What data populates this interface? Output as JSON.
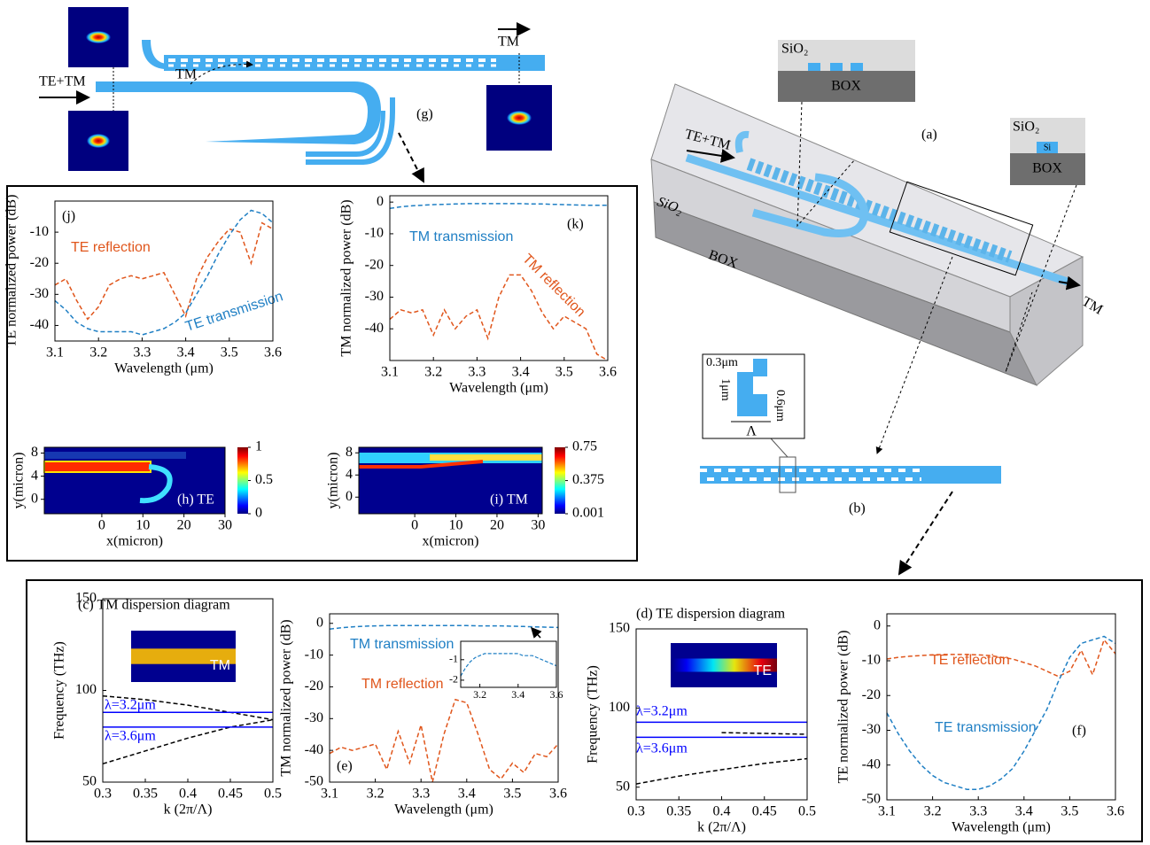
{
  "diagram": {
    "g": {
      "input": "TE+TM",
      "coupled": "TM",
      "output": "TM",
      "label": "(g)"
    },
    "a": {
      "input": "TE+TM",
      "output": "TM",
      "label": "(a)",
      "cladding": "SiO₂",
      "substrate": "BOX",
      "inset1": {
        "cladding": "SiO₂",
        "substrate": "BOX"
      },
      "inset2": {
        "cladding": "SiO₂",
        "core": "Si",
        "substrate": "BOX"
      }
    },
    "b": {
      "width": "0.3μm",
      "height": "1μm",
      "gap": "0.6μm",
      "period": "Λ",
      "label": "(b)"
    }
  },
  "chart_data": [
    {
      "type": "line",
      "panel_label": "(j)",
      "xlabel": "Wavelength (μm)",
      "ylabel": "TE normalized power (dB)",
      "xlim": [
        3.1,
        3.6
      ],
      "ylim": [
        -45,
        0
      ],
      "xticks": [
        3.1,
        3.2,
        3.3,
        3.4,
        3.5,
        3.6
      ],
      "yticks": [
        -40,
        -30,
        -20,
        -10
      ],
      "x": [
        3.1,
        3.125,
        3.15,
        3.175,
        3.2,
        3.225,
        3.25,
        3.275,
        3.3,
        3.325,
        3.35,
        3.375,
        3.4,
        3.425,
        3.45,
        3.475,
        3.5,
        3.525,
        3.55,
        3.575,
        3.6
      ],
      "series": [
        {
          "name": "TE reflection",
          "color": "#e0561c",
          "linestyle": "dashed",
          "values": [
            -27,
            -25,
            -32,
            -38,
            -34,
            -27,
            -25,
            -24,
            -25,
            -24,
            -23,
            -30,
            -37,
            -25,
            -18,
            -13,
            -9,
            -10,
            -20,
            -7,
            -9
          ]
        },
        {
          "name": "TE transmission",
          "color": "#1f7fc4",
          "linestyle": "dashed",
          "values": [
            -32,
            -35,
            -39,
            -41,
            -42,
            -42,
            -42,
            -42,
            -43,
            -42,
            -41,
            -39,
            -36,
            -30,
            -24,
            -17,
            -11,
            -6,
            -3,
            -4,
            -7
          ]
        }
      ]
    },
    {
      "type": "line",
      "panel_label": "(k)",
      "xlabel": "Wavelength (μm)",
      "ylabel": "TM normalized power (dB)",
      "xlim": [
        3.1,
        3.6
      ],
      "ylim": [
        -50,
        2
      ],
      "xticks": [
        3.1,
        3.2,
        3.3,
        3.4,
        3.5,
        3.6
      ],
      "yticks": [
        -40,
        -30,
        -20,
        -10,
        0
      ],
      "x": [
        3.1,
        3.125,
        3.15,
        3.175,
        3.2,
        3.225,
        3.25,
        3.275,
        3.3,
        3.325,
        3.35,
        3.375,
        3.4,
        3.425,
        3.45,
        3.475,
        3.5,
        3.525,
        3.55,
        3.575,
        3.6
      ],
      "series": [
        {
          "name": "TM transmission",
          "color": "#1f7fc4",
          "linestyle": "dashed",
          "values": [
            -2,
            -1.5,
            -1.2,
            -1,
            -0.8,
            -0.7,
            -0.6,
            -0.5,
            -0.5,
            -0.5,
            -0.5,
            -0.5,
            -0.5,
            -0.6,
            -0.6,
            -0.7,
            -0.8,
            -0.9,
            -1,
            -1,
            -1
          ]
        },
        {
          "name": "TM reflection",
          "color": "#e0561c",
          "linestyle": "dashed",
          "values": [
            -37,
            -34,
            -35,
            -34,
            -42,
            -34,
            -40,
            -36,
            -34,
            -43,
            -30,
            -23,
            -23,
            -28,
            -35,
            -40,
            -36,
            -38,
            -40,
            -48,
            -50
          ]
        }
      ]
    },
    {
      "type": "heatmap",
      "panel_label": "(h) TE",
      "xlabel": "x(micron)",
      "ylabel": "y(micron)",
      "xlim": [
        -14,
        30
      ],
      "ylim": [
        -2.5,
        9
      ],
      "xticks": [
        0,
        10,
        20,
        30
      ],
      "yticks": [
        0,
        4,
        8
      ],
      "colorbar_lim": [
        0,
        1
      ],
      "colorbar_ticks": [
        1,
        0.5,
        0
      ]
    },
    {
      "type": "heatmap",
      "panel_label": "(i) TM",
      "xlabel": "x(micron)",
      "ylabel": "y(micron)",
      "xlim": [
        -13.6,
        31
      ],
      "ylim": [
        -3,
        9
      ],
      "xticks": [
        0,
        10,
        20,
        30
      ],
      "yticks": [
        0,
        4,
        8
      ],
      "colorbar_lim": [
        0.001,
        0.75
      ],
      "colorbar_ticks": [
        0.75,
        0.375,
        0.001
      ]
    },
    {
      "type": "dispersion",
      "title": "(c) TM dispersion diagram",
      "inset_label": "TM",
      "xlabel": "k (2π/Λ)",
      "ylabel": "Frequency (THz)",
      "xlim": [
        0.3,
        0.5
      ],
      "ylim": [
        50,
        150
      ],
      "xticks": [
        0.3,
        0.35,
        0.4,
        0.45,
        0.5
      ],
      "yticks": [
        50,
        100,
        150
      ],
      "series": [
        {
          "color": "#000000",
          "linestyle": "dashed",
          "x": [
            0.3,
            0.35,
            0.4,
            0.45,
            0.5
          ],
          "values": [
            97,
            95,
            92,
            88,
            84
          ]
        },
        {
          "color": "#000000",
          "linestyle": "dashed",
          "x": [
            0.3,
            0.35,
            0.4,
            0.45,
            0.5
          ],
          "values": [
            60,
            67,
            74,
            80,
            84
          ]
        },
        {
          "name": "λ=3.2μm",
          "color": "#0000ff",
          "linestyle": "solid",
          "x": [
            0.3,
            0.5
          ],
          "values": [
            88,
            88
          ]
        },
        {
          "name": "λ=3.6μm",
          "color": "#0000ff",
          "linestyle": "solid",
          "x": [
            0.3,
            0.5
          ],
          "values": [
            80,
            80
          ]
        }
      ]
    },
    {
      "type": "line",
      "panel_label": "(e)",
      "xlabel": "Wavelength (μm)",
      "ylabel": "TM normalized power (dB)",
      "xlim": [
        3.1,
        3.6
      ],
      "ylim": [
        -50,
        3
      ],
      "xticks": [
        3.1,
        3.2,
        3.3,
        3.4,
        3.5,
        3.6
      ],
      "yticks": [
        -50,
        -40,
        -30,
        -20,
        -10,
        0
      ],
      "x": [
        3.1,
        3.125,
        3.15,
        3.175,
        3.2,
        3.225,
        3.25,
        3.275,
        3.3,
        3.325,
        3.35,
        3.375,
        3.4,
        3.425,
        3.45,
        3.475,
        3.5,
        3.525,
        3.55,
        3.575,
        3.6
      ],
      "series": [
        {
          "name": "TM transmission",
          "color": "#1f7fc4",
          "linestyle": "dashed",
          "values": [
            -1.8,
            -1.4,
            -1.1,
            -0.9,
            -0.8,
            -0.7,
            -0.7,
            -0.7,
            -0.7,
            -0.7,
            -0.7,
            -0.7,
            -0.7,
            -0.8,
            -0.8,
            -0.8,
            -0.9,
            -1,
            -1.1,
            -1.2,
            -1.3
          ]
        },
        {
          "name": "TM reflection",
          "color": "#e0561c",
          "linestyle": "dashed",
          "values": [
            -41,
            -39,
            -40,
            -39,
            -38,
            -46,
            -34,
            -44,
            -32,
            -50,
            -35,
            -24,
            -25,
            -35,
            -46,
            -49,
            -44,
            -47,
            -41,
            -42,
            -38
          ]
        }
      ],
      "inset": {
        "xlim": [
          3.1,
          3.6
        ],
        "ylim": [
          -2.35,
          -0.1
        ],
        "xticks": [
          3.2,
          3.4,
          3.6
        ],
        "yticks": [
          -1,
          -2
        ]
      }
    },
    {
      "type": "dispersion",
      "title": "(d) TE dispersion diagram",
      "inset_label": "TE",
      "xlabel": "k (2π/Λ)",
      "ylabel": "Frequency (THz)",
      "xlim": [
        0.3,
        0.5
      ],
      "ylim": [
        42,
        150
      ],
      "xticks": [
        0.3,
        0.35,
        0.4,
        0.45,
        0.5
      ],
      "yticks": [
        50,
        100,
        150
      ],
      "series": [
        {
          "color": "#000000",
          "linestyle": "dashed",
          "x": [
            0.3,
            0.35,
            0.4,
            0.45,
            0.5
          ],
          "values": [
            52,
            57,
            61,
            65,
            68
          ]
        },
        {
          "color": "#000000",
          "linestyle": "dashed",
          "x": [
            0.4,
            0.5
          ],
          "values": [
            84.5,
            83.4
          ]
        },
        {
          "name": "λ=3.2μm",
          "color": "#0000ff",
          "linestyle": "solid",
          "x": [
            0.3,
            0.5
          ],
          "values": [
            91,
            91
          ]
        },
        {
          "name": "λ=3.6μm",
          "color": "#0000ff",
          "linestyle": "solid",
          "x": [
            0.3,
            0.5
          ],
          "values": [
            81.5,
            81.5
          ]
        }
      ]
    },
    {
      "type": "line",
      "panel_label": "(f)",
      "xlabel": "Wavelength (μm)",
      "ylabel": "TE normalized power (dB)",
      "xlim": [
        3.1,
        3.6
      ],
      "ylim": [
        -50,
        3.5
      ],
      "xticks": [
        3.1,
        3.2,
        3.3,
        3.4,
        3.5,
        3.6
      ],
      "yticks": [
        -50,
        -40,
        -30,
        -20,
        -10,
        0
      ],
      "x": [
        3.1,
        3.125,
        3.15,
        3.175,
        3.2,
        3.225,
        3.25,
        3.275,
        3.3,
        3.325,
        3.35,
        3.375,
        3.4,
        3.425,
        3.45,
        3.475,
        3.5,
        3.525,
        3.55,
        3.575,
        3.6
      ],
      "series": [
        {
          "name": "TE reflection",
          "color": "#e0561c",
          "linestyle": "dashed",
          "values": [
            -9.5,
            -9,
            -8.7,
            -8.5,
            -8.3,
            -8.2,
            -8.2,
            -8.2,
            -8.3,
            -8.5,
            -9,
            -9.5,
            -10.5,
            -11.5,
            -13,
            -14.5,
            -13,
            -7,
            -14,
            -4,
            -8
          ]
        },
        {
          "name": "TE transmission",
          "color": "#1f7fc4",
          "linestyle": "dashed",
          "values": [
            -25,
            -31,
            -36,
            -40,
            -43,
            -45,
            -46,
            -47,
            -47,
            -46,
            -44,
            -41,
            -36,
            -30,
            -24,
            -16,
            -9,
            -5,
            -4,
            -3,
            -5
          ]
        }
      ]
    }
  ]
}
